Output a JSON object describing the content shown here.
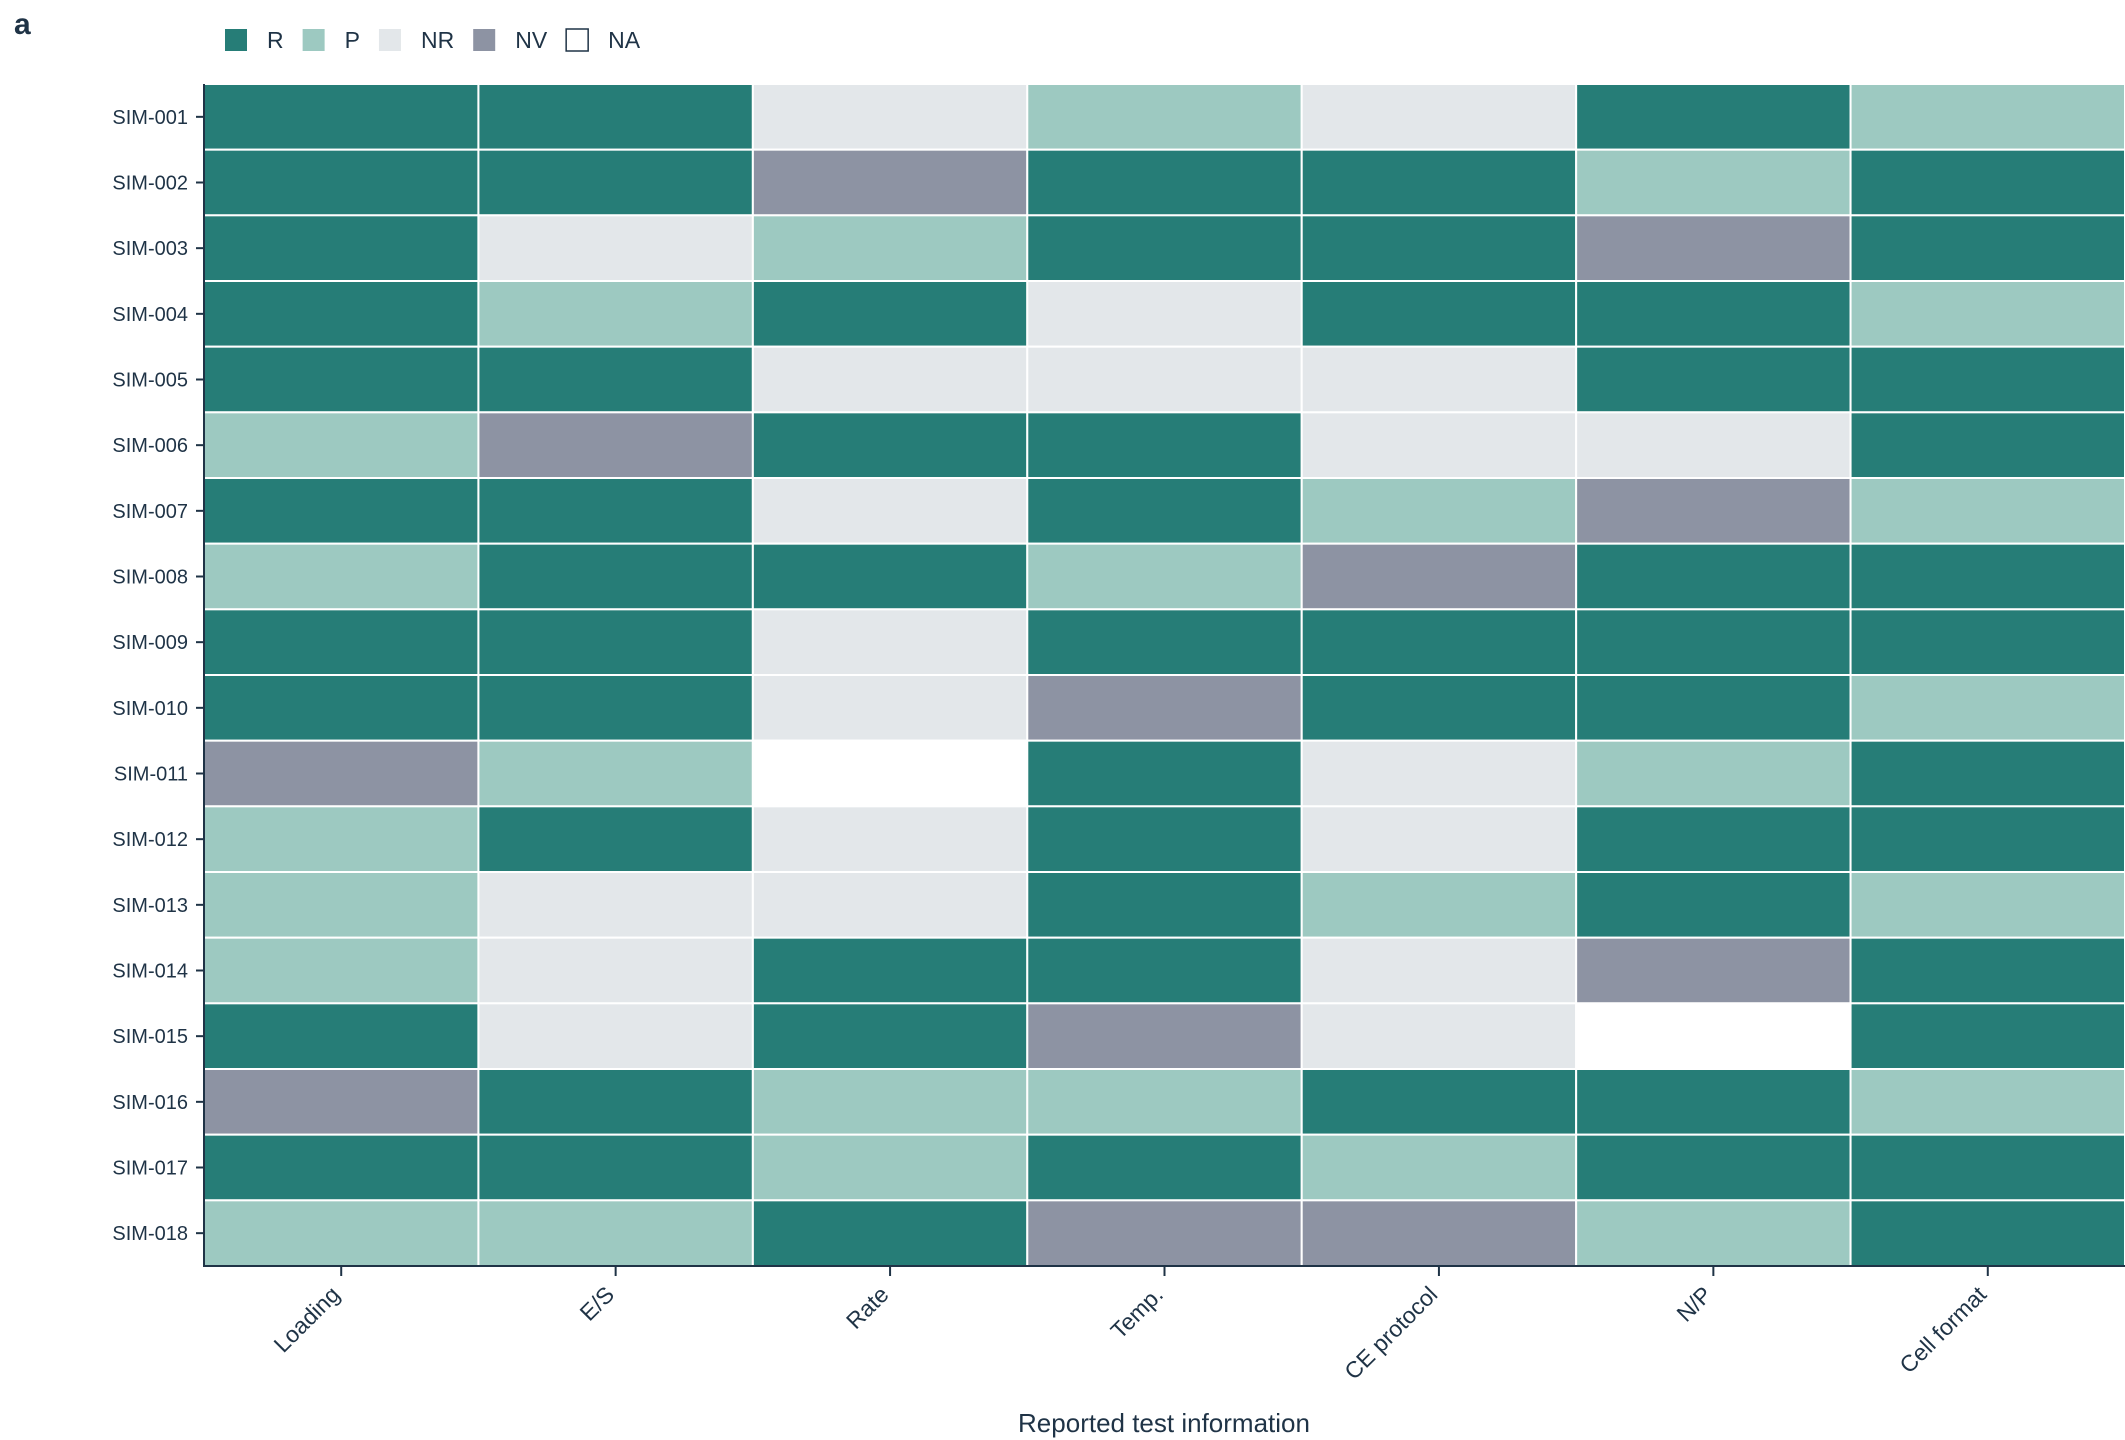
{
  "panel_label": "a",
  "colors": {
    "R": "#267d77",
    "P": "#9dc9c1",
    "NR": "#e3e7ea",
    "NV": "#8d93a3",
    "NA": "#ffffff",
    "axis": "#1f3346",
    "cell_border": "#ffffff"
  },
  "chart_data": {
    "type": "heatmap",
    "xlabel": "Reported test information",
    "ylabel": "",
    "legend_position": "top-left",
    "legend": [
      {
        "key": "R",
        "label": "R"
      },
      {
        "key": "P",
        "label": "P"
      },
      {
        "key": "NR",
        "label": "NR"
      },
      {
        "key": "NV",
        "label": "NV"
      },
      {
        "key": "NA",
        "label": "NA"
      }
    ],
    "columns": [
      "Loading",
      "E/S",
      "Rate",
      "Temp.",
      "CE protocol",
      "N/P",
      "Cell format"
    ],
    "rows": [
      "SIM-001",
      "SIM-002",
      "SIM-003",
      "SIM-004",
      "SIM-005",
      "SIM-006",
      "SIM-007",
      "SIM-008",
      "SIM-009",
      "SIM-010",
      "SIM-011",
      "SIM-012",
      "SIM-013",
      "SIM-014",
      "SIM-015",
      "SIM-016",
      "SIM-017",
      "SIM-018"
    ],
    "values": [
      [
        "R",
        "R",
        "NR",
        "P",
        "NR",
        "R",
        "P"
      ],
      [
        "R",
        "R",
        "NV",
        "R",
        "R",
        "P",
        "R"
      ],
      [
        "R",
        "NR",
        "P",
        "R",
        "R",
        "NV",
        "R"
      ],
      [
        "R",
        "P",
        "R",
        "NR",
        "R",
        "R",
        "P"
      ],
      [
        "R",
        "R",
        "NR",
        "NR",
        "NR",
        "R",
        "R"
      ],
      [
        "P",
        "NV",
        "R",
        "R",
        "NR",
        "NR",
        "R"
      ],
      [
        "R",
        "R",
        "NR",
        "R",
        "P",
        "NV",
        "P"
      ],
      [
        "P",
        "R",
        "R",
        "P",
        "NV",
        "R",
        "R"
      ],
      [
        "R",
        "R",
        "NR",
        "R",
        "R",
        "R",
        "R"
      ],
      [
        "R",
        "R",
        "NR",
        "NV",
        "R",
        "R",
        "P"
      ],
      [
        "NV",
        "P",
        "NA",
        "R",
        "NR",
        "P",
        "R"
      ],
      [
        "P",
        "R",
        "NR",
        "R",
        "NR",
        "R",
        "R"
      ],
      [
        "P",
        "NR",
        "NR",
        "R",
        "P",
        "R",
        "P"
      ],
      [
        "P",
        "NR",
        "R",
        "R",
        "NR",
        "NV",
        "R"
      ],
      [
        "R",
        "NR",
        "R",
        "NV",
        "NR",
        "NA",
        "R"
      ],
      [
        "NV",
        "R",
        "P",
        "P",
        "R",
        "R",
        "P"
      ],
      [
        "R",
        "R",
        "P",
        "R",
        "P",
        "R",
        "R"
      ],
      [
        "P",
        "P",
        "R",
        "NV",
        "NV",
        "P",
        "R"
      ]
    ]
  }
}
